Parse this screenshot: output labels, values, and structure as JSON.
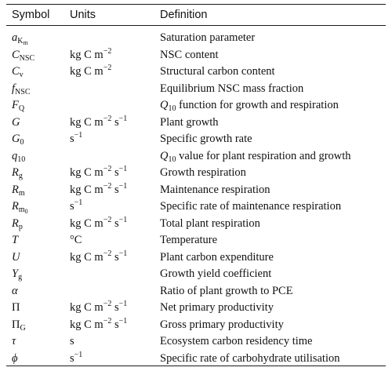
{
  "table": {
    "headers": {
      "symbol": "Symbol",
      "units": "Units",
      "definition": "Definition"
    },
    "rows": [
      {
        "symbol": "a",
        "symbol_sub": "K",
        "symbol_subsub": "m",
        "units": "",
        "definition": "Saturation parameter"
      },
      {
        "symbol": "C",
        "symbol_sub": "NSC",
        "units": "kg C m",
        "units_sup": "−2",
        "definition": "NSC content"
      },
      {
        "symbol": "C",
        "symbol_sub": "v",
        "units": "kg C m",
        "units_sup": "−2",
        "definition": "Structural carbon content"
      },
      {
        "symbol": "f",
        "symbol_sub": "NSC",
        "units": "",
        "definition": "Equilibrium NSC mass fraction"
      },
      {
        "symbol": "F",
        "symbol_sub": "Q",
        "units": "",
        "def_q": "Q",
        "def_qsub": "10",
        "definition": " function for growth and respiration"
      },
      {
        "symbol": "G",
        "units": "kg C m",
        "units_sup": "−2",
        "units_b": " s",
        "units_sup_b": "−1",
        "definition": "Plant growth"
      },
      {
        "symbol": "G",
        "symbol_sub": "0",
        "units": "s",
        "units_sup": "−1",
        "definition": "Specific growth rate"
      },
      {
        "symbol": "q",
        "symbol_sub": "10",
        "units": "",
        "def_q": "Q",
        "def_qsub": "10",
        "definition": " value for plant respiration and growth"
      },
      {
        "symbol": "R",
        "symbol_sub": "g",
        "units": "kg C m",
        "units_sup": "−2",
        "units_b": " s",
        "units_sup_b": "−1",
        "definition": "Growth respiration"
      },
      {
        "symbol": "R",
        "symbol_sub": "m",
        "units": "kg C m",
        "units_sup": "−2",
        "units_b": " s",
        "units_sup_b": "−1",
        "definition": "Maintenance respiration"
      },
      {
        "symbol": "R",
        "symbol_sub": "m",
        "symbol_subsub": "0",
        "units": "s",
        "units_sup": "−1",
        "definition": "Specific rate of maintenance respiration"
      },
      {
        "symbol": "R",
        "symbol_sub": "p",
        "units": "kg C m",
        "units_sup": "−2",
        "units_b": " s",
        "units_sup_b": "−1",
        "definition": "Total plant respiration"
      },
      {
        "symbol": "T",
        "units": "°C",
        "definition": "Temperature"
      },
      {
        "symbol": "U",
        "units": "kg C m",
        "units_sup": "−2",
        "units_b": " s",
        "units_sup_b": "−1",
        "definition": "Plant carbon expenditure"
      },
      {
        "symbol": "Y",
        "symbol_sub": "g",
        "units": "",
        "definition": "Growth yield coefficient"
      },
      {
        "symbol": "α",
        "units": "",
        "definition": "Ratio of plant growth to PCE"
      },
      {
        "symbol": "Π",
        "symbol_upright": true,
        "units": "kg C m",
        "units_sup": "−2",
        "units_b": " s",
        "units_sup_b": "−1",
        "definition": "Net primary productivity"
      },
      {
        "symbol": "Π",
        "symbol_upright": true,
        "symbol_sub": "G",
        "units": "kg C m",
        "units_sup": "−2",
        "units_b": " s",
        "units_sup_b": "−1",
        "definition": "Gross primary productivity"
      },
      {
        "symbol": "τ",
        "units": "s",
        "definition": "Ecosystem carbon residency time"
      },
      {
        "symbol": "ϕ",
        "units": "s",
        "units_sup": "−1",
        "definition": "Specific rate of carbohydrate utilisation"
      }
    ]
  }
}
